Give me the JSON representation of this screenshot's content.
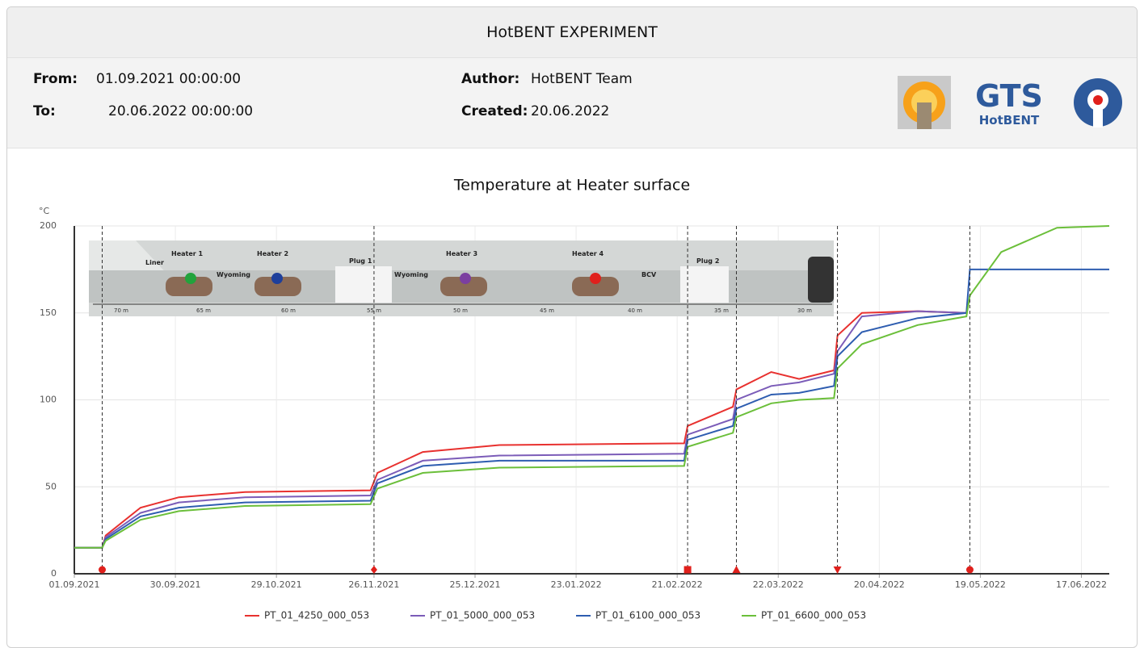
{
  "header": {
    "title": "HotBENT EXPERIMENT",
    "from_label": "From:",
    "from": "01.09.2021 00:00:00",
    "to_label": "To:",
    "to": "20.06.2022 00:00:00",
    "author_label": "Author:",
    "author": "HotBENT Team",
    "created_label": "Created:",
    "created": "20.06.2022",
    "logo_title": "GTS",
    "logo_subtitle": "HotBENT"
  },
  "inset": {
    "labels": [
      "Liner",
      "Heater 1",
      "Wyoming",
      "Heater 2",
      "Plug 1",
      "Wyoming",
      "Heater 3",
      "Heater 4",
      "BCV",
      "Plug 2"
    ],
    "scale": [
      "70 m",
      "65 m",
      "60 m",
      "55 m",
      "50 m",
      "45 m",
      "40 m",
      "35 m",
      "30 m"
    ]
  },
  "chart_data": {
    "type": "line",
    "title": "Temperature at Heater surface",
    "y_unit": "°C",
    "x": [
      "2021-09-01",
      "2021-09-09",
      "2021-09-10",
      "2021-09-20",
      "2021-10-01",
      "2021-10-20",
      "2021-11-25",
      "2021-11-27",
      "2021-12-10",
      "2022-01-01",
      "2022-02-23",
      "2022-02-24",
      "2022-03-09",
      "2022-03-10",
      "2022-03-20",
      "2022-03-28",
      "2022-04-07",
      "2022-04-08",
      "2022-04-15",
      "2022-05-01",
      "2022-05-15",
      "2022-05-16",
      "2022-05-25",
      "2022-06-10",
      "2022-06-25"
    ],
    "series": [
      {
        "name": "PT_01_4250_000_053",
        "color": "#e8312f",
        "values": [
          15,
          15,
          22,
          38,
          44,
          47,
          48,
          58,
          70,
          74,
          75,
          85,
          96,
          106,
          116,
          112,
          117,
          137,
          150,
          151,
          150,
          null,
          null,
          null,
          null
        ]
      },
      {
        "name": "PT_01_5000_000_053",
        "color": "#7b5cb8",
        "values": [
          15,
          15,
          21,
          35,
          41,
          44,
          45,
          54,
          65,
          68,
          69,
          80,
          89,
          100,
          108,
          110,
          115,
          128,
          148,
          151,
          150,
          null,
          null,
          null,
          null
        ]
      },
      {
        "name": "PT_01_6100_000_053",
        "color": "#2e5db0",
        "values": [
          15,
          15,
          20,
          33,
          38,
          41,
          42,
          52,
          62,
          65,
          65,
          77,
          85,
          95,
          103,
          104,
          108,
          125,
          139,
          147,
          150,
          175,
          175,
          175,
          175
        ]
      },
      {
        "name": "PT_01_6600_000_053",
        "color": "#6bbf3a",
        "values": [
          15,
          15,
          19,
          31,
          36,
          39,
          40,
          49,
          58,
          61,
          62,
          73,
          81,
          90,
          98,
          100,
          101,
          118,
          132,
          143,
          148,
          160,
          185,
          199,
          200
        ]
      }
    ],
    "events": [
      {
        "x": "2021-09-09",
        "marker": "circle"
      },
      {
        "x": "2021-11-26",
        "marker": "diamond"
      },
      {
        "x": "2022-02-24",
        "marker": "square"
      },
      {
        "x": "2022-03-10",
        "marker": "triangle-up"
      },
      {
        "x": "2022-04-08",
        "marker": "triangle-down"
      },
      {
        "x": "2022-05-16",
        "marker": "circle"
      }
    ],
    "event_color": "#e0201c",
    "xlim": [
      "2021-09-01",
      "2022-06-25"
    ],
    "xticks": [
      {
        "value": "2021-09-01",
        "label": "01.09.2021"
      },
      {
        "value": "2021-09-30",
        "label": "30.09.2021"
      },
      {
        "value": "2021-10-29",
        "label": "29.10.2021"
      },
      {
        "value": "2021-11-26",
        "label": "26.11.2021"
      },
      {
        "value": "2021-12-25",
        "label": "25.12.2021"
      },
      {
        "value": "2022-01-23",
        "label": "23.01.2022"
      },
      {
        "value": "2022-02-21",
        "label": "21.02.2022"
      },
      {
        "value": "2022-03-22",
        "label": "22.03.2022"
      },
      {
        "value": "2022-04-20",
        "label": "20.04.2022"
      },
      {
        "value": "2022-05-19",
        "label": "19.05.2022"
      },
      {
        "value": "2022-06-17",
        "label": "17.06.2022"
      }
    ],
    "ylim": [
      0,
      200
    ],
    "yticks": [
      0,
      50,
      100,
      150,
      200
    ],
    "grid": true
  }
}
